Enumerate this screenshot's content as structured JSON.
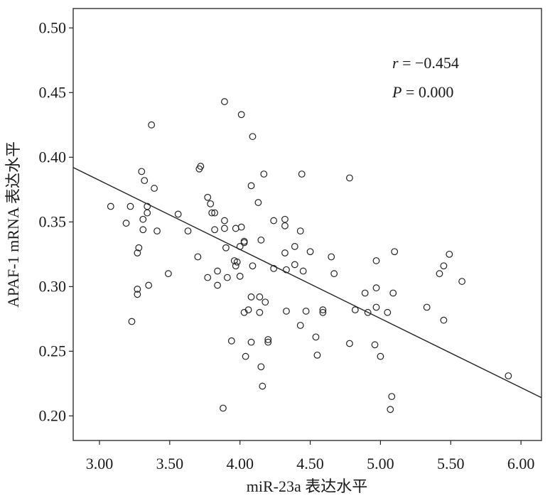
{
  "chart_data": {
    "type": "scatter",
    "title": "",
    "xlabel": "miR-23a 表达水平",
    "ylabel": "APAF-1 mRNA 表达水平",
    "xlim": [
      2.813,
      6.146
    ],
    "ylim": [
      0.181,
      0.515
    ],
    "grid": false,
    "x_ticks": [
      "3.00",
      "3.50",
      "4.00",
      "4.50",
      "5.00",
      "5.50",
      "6.00"
    ],
    "x_tick_values": [
      3.0,
      3.5,
      4.0,
      4.5,
      5.0,
      5.5,
      6.0
    ],
    "y_ticks": [
      "0.50",
      "0.45",
      "0.40",
      "0.35",
      "0.30",
      "0.25",
      "0.20"
    ],
    "y_tick_values": [
      0.5,
      0.45,
      0.4,
      0.35,
      0.3,
      0.25,
      0.2
    ],
    "annotation": {
      "r_symbol": "r",
      "r_text": " = −0.454",
      "p_symbol": "P",
      "p_text": " = 0.000"
    },
    "regression": {
      "slope": -0.0534,
      "intercept": 0.5423
    },
    "points": [
      [
        3.08,
        0.362
      ],
      [
        3.22,
        0.362
      ],
      [
        3.19,
        0.349
      ],
      [
        3.3,
        0.389
      ],
      [
        3.32,
        0.382
      ],
      [
        3.34,
        0.362
      ],
      [
        3.34,
        0.357
      ],
      [
        3.31,
        0.352
      ],
      [
        3.31,
        0.344
      ],
      [
        3.27,
        0.326
      ],
      [
        3.28,
        0.33
      ],
      [
        3.27,
        0.298
      ],
      [
        3.27,
        0.294
      ],
      [
        3.23,
        0.273
      ],
      [
        3.35,
        0.301
      ],
      [
        3.39,
        0.376
      ],
      [
        3.41,
        0.343
      ],
      [
        3.37,
        0.425
      ],
      [
        3.49,
        0.31
      ],
      [
        3.56,
        0.356
      ],
      [
        3.63,
        0.343
      ],
      [
        3.7,
        0.323
      ],
      [
        3.71,
        0.391
      ],
      [
        3.72,
        0.393
      ],
      [
        3.77,
        0.369
      ],
      [
        3.79,
        0.364
      ],
      [
        3.8,
        0.357
      ],
      [
        3.82,
        0.357
      ],
      [
        3.82,
        0.344
      ],
      [
        3.89,
        0.443
      ],
      [
        3.89,
        0.351
      ],
      [
        3.89,
        0.345
      ],
      [
        3.9,
        0.33
      ],
      [
        3.91,
        0.307
      ],
      [
        3.84,
        0.301
      ],
      [
        3.77,
        0.307
      ],
      [
        3.84,
        0.312
      ],
      [
        3.88,
        0.206
      ],
      [
        3.94,
        0.258
      ],
      [
        3.96,
        0.32
      ],
      [
        3.97,
        0.316
      ],
      [
        3.98,
        0.319
      ],
      [
        4.0,
        0.308
      ],
      [
        4.0,
        0.331
      ],
      [
        3.97,
        0.345
      ],
      [
        4.03,
        0.335
      ],
      [
        4.03,
        0.334
      ],
      [
        4.01,
        0.346
      ],
      [
        4.01,
        0.433
      ],
      [
        4.03,
        0.28
      ],
      [
        4.04,
        0.246
      ],
      [
        4.06,
        0.282
      ],
      [
        4.08,
        0.292
      ],
      [
        4.08,
        0.257
      ],
      [
        4.09,
        0.316
      ],
      [
        4.08,
        0.378
      ],
      [
        4.09,
        0.416
      ],
      [
        4.13,
        0.365
      ],
      [
        4.15,
        0.336
      ],
      [
        4.14,
        0.292
      ],
      [
        4.14,
        0.28
      ],
      [
        4.15,
        0.238
      ],
      [
        4.16,
        0.223
      ],
      [
        4.18,
        0.288
      ],
      [
        4.17,
        0.387
      ],
      [
        4.2,
        0.257
      ],
      [
        4.2,
        0.259
      ],
      [
        4.24,
        0.351
      ],
      [
        4.24,
        0.314
      ],
      [
        4.32,
        0.326
      ],
      [
        4.32,
        0.352
      ],
      [
        4.32,
        0.347
      ],
      [
        4.33,
        0.313
      ],
      [
        4.33,
        0.281
      ],
      [
        4.39,
        0.331
      ],
      [
        4.39,
        0.317
      ],
      [
        4.43,
        0.343
      ],
      [
        4.44,
        0.387
      ],
      [
        4.45,
        0.312
      ],
      [
        4.43,
        0.27
      ],
      [
        4.47,
        0.281
      ],
      [
        4.5,
        0.327
      ],
      [
        4.54,
        0.261
      ],
      [
        4.55,
        0.247
      ],
      [
        4.59,
        0.282
      ],
      [
        4.59,
        0.28
      ],
      [
        4.65,
        0.323
      ],
      [
        4.67,
        0.31
      ],
      [
        4.78,
        0.384
      ],
      [
        4.78,
        0.256
      ],
      [
        4.82,
        0.282
      ],
      [
        4.89,
        0.295
      ],
      [
        4.91,
        0.28
      ],
      [
        4.96,
        0.255
      ],
      [
        4.97,
        0.284
      ],
      [
        4.97,
        0.32
      ],
      [
        4.97,
        0.299
      ],
      [
        5.0,
        0.246
      ],
      [
        5.05,
        0.28
      ],
      [
        5.07,
        0.205
      ],
      [
        5.08,
        0.215
      ],
      [
        5.09,
        0.295
      ],
      [
        5.1,
        0.327
      ],
      [
        5.33,
        0.284
      ],
      [
        5.42,
        0.31
      ],
      [
        5.45,
        0.316
      ],
      [
        5.45,
        0.274
      ],
      [
        5.49,
        0.325
      ],
      [
        5.58,
        0.304
      ],
      [
        5.91,
        0.231
      ]
    ]
  }
}
